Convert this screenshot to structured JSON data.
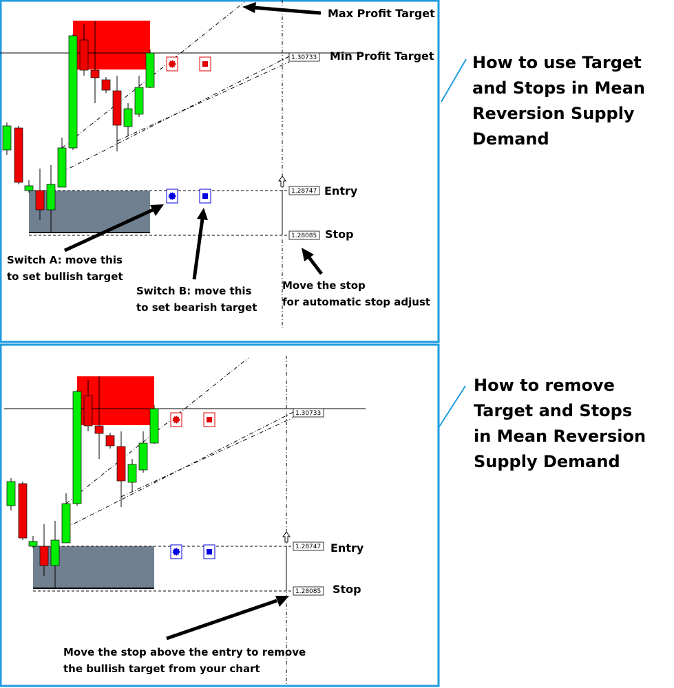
{
  "top_panel": {
    "max_target": "Max Profit Target",
    "min_target": "Min Profit Target",
    "prices": [
      "1.30733",
      "1.28747",
      "1.28085"
    ],
    "entry": "Entry",
    "stop": "Stop",
    "switch_a": [
      "Switch A: move this",
      "to set bullish target"
    ],
    "switch_b": [
      "Switch B: move this",
      "to set bearish target"
    ],
    "stop_note": [
      "Move the stop",
      "for automatic stop adjust"
    ],
    "caption": [
      "How to use Target",
      "and Stops in Mean",
      "Reversion Supply",
      "Demand"
    ]
  },
  "bottom_panel": {
    "prices": [
      "1.30733",
      "1.28747",
      "1.28085"
    ],
    "entry": "Entry",
    "stop": "Stop",
    "note": [
      "Move the stop above the entry to remove",
      "the bullish target from your chart"
    ],
    "caption": [
      "How to remove",
      "Target and Stops",
      "in Mean Reversion",
      "Supply Demand"
    ]
  }
}
